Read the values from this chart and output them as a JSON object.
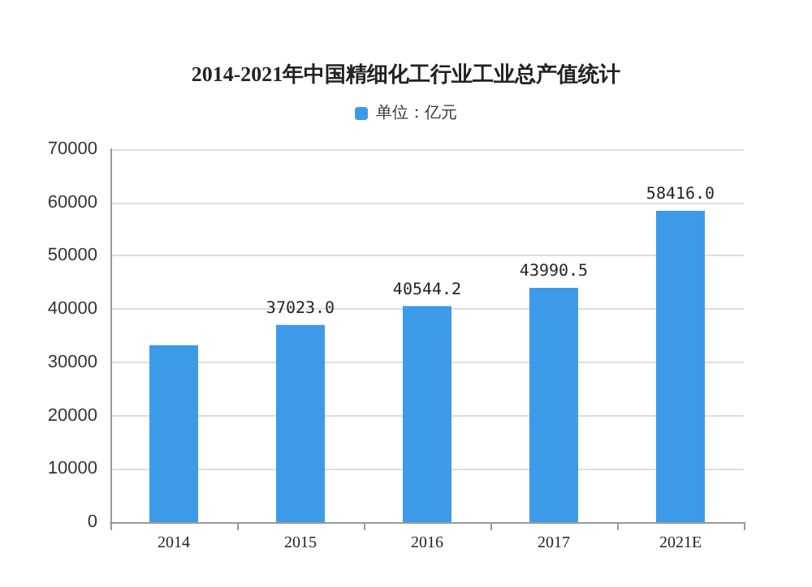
{
  "chart_data": {
    "type": "bar",
    "title": "2014-2021年中国精细化工行业工业总产值统计",
    "categories": [
      "2014",
      "2015",
      "2016",
      "2017",
      "2021E"
    ],
    "series": [
      {
        "name": "单位：亿元",
        "color": "#3d9ae8",
        "values": [
          33200,
          37023.0,
          40544.2,
          43990.5,
          58416.0
        ],
        "value_labels": [
          null,
          "37023.0",
          "40544.2",
          "43990.5",
          "58416.0"
        ]
      }
    ],
    "ylim": [
      0,
      70000
    ],
    "yticks": [
      0,
      10000,
      20000,
      30000,
      40000,
      50000,
      60000,
      70000
    ],
    "grid": "y",
    "legend": "top"
  }
}
